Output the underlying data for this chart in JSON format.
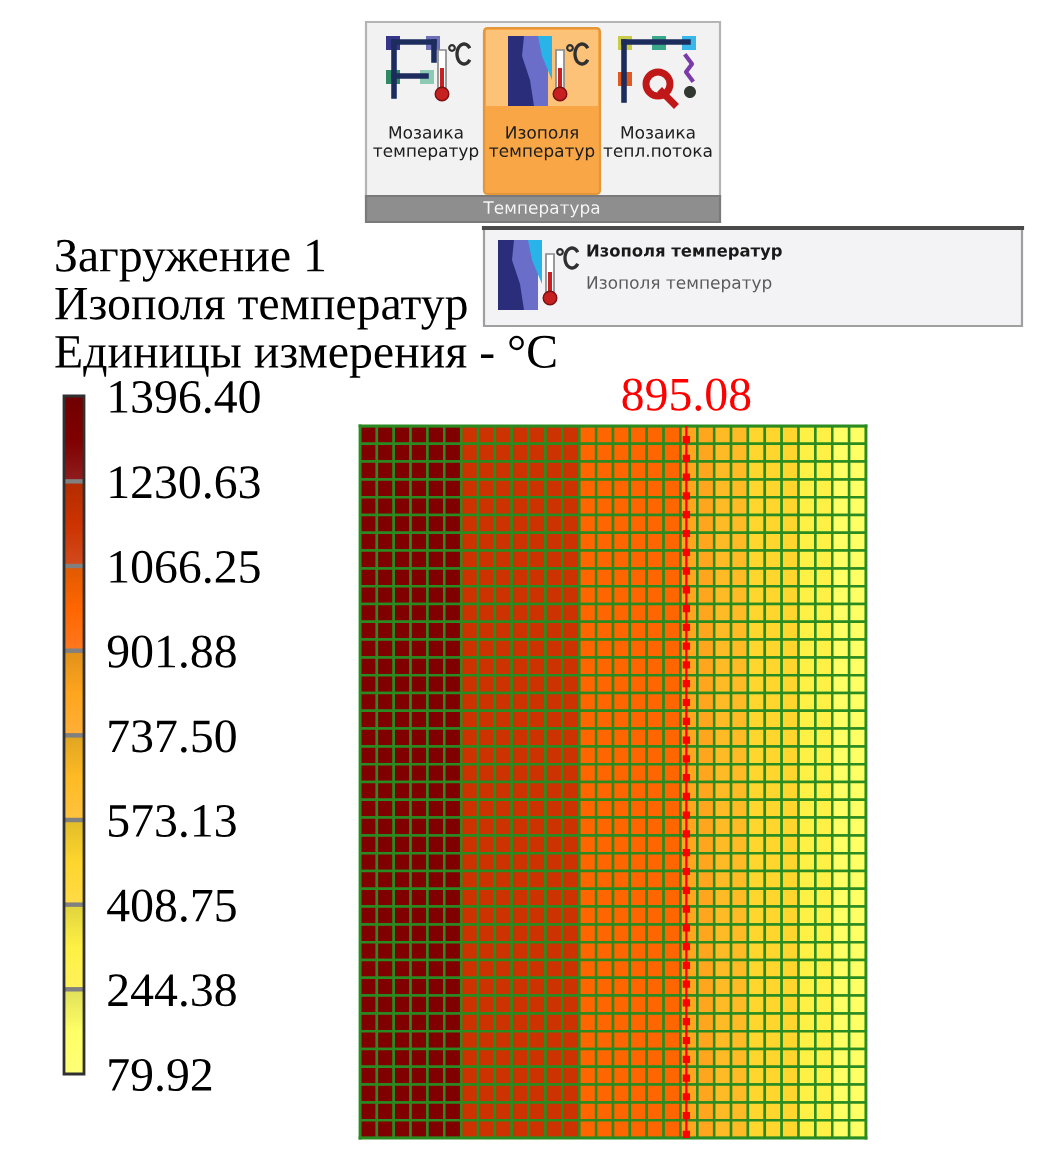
{
  "chart_data": {
    "type": "heatmap",
    "title": "Загружение 1",
    "subtitle": "Изополя температур",
    "clabel": "Единицы измерения - °C",
    "annotations": [
      "Мозаика\nтемператур",
      "Изополя\nтемператур",
      "Мозаика\nтепл.потока",
      "Температура",
      "Изополя температур",
      "Изополя температур",
      "895.08"
    ],
    "categories": [
      null,
      null,
      null,
      null,
      null,
      null,
      null,
      null,
      null,
      null,
      null,
      null,
      null,
      null,
      null,
      null,
      null,
      null,
      null,
      null,
      null,
      null,
      null,
      null,
      null,
      null,
      null,
      null,
      null,
      null
    ],
    "y_categories": [
      null,
      null,
      null,
      null,
      null,
      null,
      null,
      null,
      null,
      null,
      null,
      null,
      null,
      null,
      null,
      null,
      null,
      null,
      null,
      null,
      null,
      null,
      null,
      null,
      null,
      null,
      null,
      null,
      null,
      null,
      null,
      null,
      null,
      null,
      null,
      null,
      null,
      null,
      null,
      null
    ],
    "cells": [
      [
        1314,
        1314,
        1314,
        1314,
        1314,
        1314,
        1148,
        1148,
        1148,
        1148,
        1148,
        1148,
        1148,
        984,
        984,
        984,
        984,
        984,
        984,
        820,
        820,
        655,
        655,
        491,
        491,
        491,
        327,
        327,
        162,
        162
      ],
      [
        1314,
        1314,
        1314,
        1314,
        1314,
        1314,
        1148,
        1148,
        1148,
        1148,
        1148,
        1148,
        1148,
        984,
        984,
        984,
        984,
        984,
        984,
        820,
        820,
        655,
        655,
        491,
        491,
        491,
        327,
        327,
        162,
        162
      ],
      [
        1314,
        1314,
        1314,
        1314,
        1314,
        1314,
        1148,
        1148,
        1148,
        1148,
        1148,
        1148,
        1148,
        984,
        984,
        984,
        984,
        984,
        984,
        820,
        820,
        655,
        655,
        491,
        491,
        491,
        327,
        327,
        162,
        162
      ],
      [
        1314,
        1314,
        1314,
        1314,
        1314,
        1314,
        1148,
        1148,
        1148,
        1148,
        1148,
        1148,
        1148,
        984,
        984,
        984,
        984,
        984,
        984,
        820,
        820,
        655,
        655,
        491,
        491,
        491,
        327,
        327,
        162,
        162
      ],
      [
        1314,
        1314,
        1314,
        1314,
        1314,
        1314,
        1148,
        1148,
        1148,
        1148,
        1148,
        1148,
        1148,
        984,
        984,
        984,
        984,
        984,
        984,
        820,
        820,
        655,
        655,
        491,
        491,
        491,
        327,
        327,
        162,
        162
      ],
      [
        1314,
        1314,
        1314,
        1314,
        1314,
        1314,
        1148,
        1148,
        1148,
        1148,
        1148,
        1148,
        1148,
        984,
        984,
        984,
        984,
        984,
        984,
        820,
        820,
        655,
        655,
        491,
        491,
        491,
        327,
        327,
        162,
        162
      ],
      [
        1314,
        1314,
        1314,
        1314,
        1314,
        1314,
        1148,
        1148,
        1148,
        1148,
        1148,
        1148,
        1148,
        984,
        984,
        984,
        984,
        984,
        984,
        820,
        820,
        655,
        655,
        491,
        491,
        491,
        327,
        327,
        162,
        162
      ],
      [
        1314,
        1314,
        1314,
        1314,
        1314,
        1314,
        1148,
        1148,
        1148,
        1148,
        1148,
        1148,
        1148,
        984,
        984,
        984,
        984,
        984,
        984,
        820,
        820,
        655,
        655,
        491,
        491,
        491,
        327,
        327,
        162,
        162
      ],
      [
        1314,
        1314,
        1314,
        1314,
        1314,
        1314,
        1148,
        1148,
        1148,
        1148,
        1148,
        1148,
        1148,
        984,
        984,
        984,
        984,
        984,
        984,
        820,
        820,
        655,
        655,
        491,
        491,
        491,
        327,
        327,
        162,
        162
      ],
      [
        1314,
        1314,
        1314,
        1314,
        1314,
        1314,
        1148,
        1148,
        1148,
        1148,
        1148,
        1148,
        1148,
        984,
        984,
        984,
        984,
        984,
        984,
        820,
        820,
        655,
        655,
        491,
        491,
        491,
        327,
        327,
        162,
        162
      ],
      [
        1314,
        1314,
        1314,
        1314,
        1314,
        1314,
        1148,
        1148,
        1148,
        1148,
        1148,
        1148,
        1148,
        984,
        984,
        984,
        984,
        984,
        984,
        820,
        820,
        655,
        655,
        491,
        491,
        491,
        327,
        327,
        162,
        162
      ],
      [
        1314,
        1314,
        1314,
        1314,
        1314,
        1314,
        1148,
        1148,
        1148,
        1148,
        1148,
        1148,
        1148,
        984,
        984,
        984,
        984,
        984,
        984,
        820,
        820,
        655,
        655,
        491,
        491,
        491,
        327,
        327,
        162,
        162
      ],
      [
        1314,
        1314,
        1314,
        1314,
        1314,
        1314,
        1148,
        1148,
        1148,
        1148,
        1148,
        1148,
        1148,
        984,
        984,
        984,
        984,
        984,
        984,
        820,
        820,
        655,
        655,
        491,
        491,
        491,
        327,
        327,
        162,
        162
      ],
      [
        1314,
        1314,
        1314,
        1314,
        1314,
        1314,
        1148,
        1148,
        1148,
        1148,
        1148,
        1148,
        1148,
        984,
        984,
        984,
        984,
        984,
        984,
        820,
        820,
        655,
        655,
        491,
        491,
        491,
        327,
        327,
        162,
        162
      ],
      [
        1314,
        1314,
        1314,
        1314,
        1314,
        1314,
        1148,
        1148,
        1148,
        1148,
        1148,
        1148,
        1148,
        984,
        984,
        984,
        984,
        984,
        984,
        820,
        820,
        655,
        655,
        491,
        491,
        491,
        327,
        327,
        162,
        162
      ],
      [
        1314,
        1314,
        1314,
        1314,
        1314,
        1314,
        1148,
        1148,
        1148,
        1148,
        1148,
        1148,
        1148,
        984,
        984,
        984,
        984,
        984,
        984,
        820,
        820,
        655,
        655,
        491,
        491,
        491,
        327,
        327,
        162,
        162
      ],
      [
        1314,
        1314,
        1314,
        1314,
        1314,
        1314,
        1148,
        1148,
        1148,
        1148,
        1148,
        1148,
        1148,
        984,
        984,
        984,
        984,
        984,
        984,
        820,
        820,
        655,
        655,
        491,
        491,
        491,
        327,
        327,
        162,
        162
      ],
      [
        1314,
        1314,
        1314,
        1314,
        1314,
        1314,
        1148,
        1148,
        1148,
        1148,
        1148,
        1148,
        1148,
        984,
        984,
        984,
        984,
        984,
        984,
        820,
        820,
        655,
        655,
        491,
        491,
        491,
        327,
        327,
        162,
        162
      ],
      [
        1314,
        1314,
        1314,
        1314,
        1314,
        1314,
        1148,
        1148,
        1148,
        1148,
        1148,
        1148,
        1148,
        984,
        984,
        984,
        984,
        984,
        984,
        820,
        820,
        655,
        655,
        491,
        491,
        491,
        327,
        327,
        162,
        162
      ],
      [
        1314,
        1314,
        1314,
        1314,
        1314,
        1314,
        1148,
        1148,
        1148,
        1148,
        1148,
        1148,
        1148,
        984,
        984,
        984,
        984,
        984,
        984,
        820,
        820,
        655,
        655,
        491,
        491,
        491,
        327,
        327,
        162,
        162
      ],
      [
        1314,
        1314,
        1314,
        1314,
        1314,
        1314,
        1148,
        1148,
        1148,
        1148,
        1148,
        1148,
        1148,
        984,
        984,
        984,
        984,
        984,
        984,
        820,
        820,
        655,
        655,
        491,
        491,
        491,
        327,
        327,
        162,
        162
      ],
      [
        1314,
        1314,
        1314,
        1314,
        1314,
        1314,
        1148,
        1148,
        1148,
        1148,
        1148,
        1148,
        1148,
        984,
        984,
        984,
        984,
        984,
        984,
        820,
        820,
        655,
        655,
        491,
        491,
        491,
        327,
        327,
        162,
        162
      ],
      [
        1314,
        1314,
        1314,
        1314,
        1314,
        1314,
        1148,
        1148,
        1148,
        1148,
        1148,
        1148,
        1148,
        984,
        984,
        984,
        984,
        984,
        984,
        820,
        820,
        655,
        655,
        491,
        491,
        491,
        327,
        327,
        162,
        162
      ],
      [
        1314,
        1314,
        1314,
        1314,
        1314,
        1314,
        1148,
        1148,
        1148,
        1148,
        1148,
        1148,
        1148,
        984,
        984,
        984,
        984,
        984,
        984,
        820,
        820,
        655,
        655,
        491,
        491,
        491,
        327,
        327,
        162,
        162
      ],
      [
        1314,
        1314,
        1314,
        1314,
        1314,
        1314,
        1148,
        1148,
        1148,
        1148,
        1148,
        1148,
        1148,
        984,
        984,
        984,
        984,
        984,
        984,
        820,
        820,
        655,
        655,
        491,
        491,
        491,
        327,
        327,
        162,
        162
      ],
      [
        1314,
        1314,
        1314,
        1314,
        1314,
        1314,
        1148,
        1148,
        1148,
        1148,
        1148,
        1148,
        1148,
        984,
        984,
        984,
        984,
        984,
        984,
        820,
        820,
        655,
        655,
        491,
        491,
        491,
        327,
        327,
        162,
        162
      ],
      [
        1314,
        1314,
        1314,
        1314,
        1314,
        1314,
        1148,
        1148,
        1148,
        1148,
        1148,
        1148,
        1148,
        984,
        984,
        984,
        984,
        984,
        984,
        820,
        820,
        655,
        655,
        491,
        491,
        491,
        327,
        327,
        162,
        162
      ],
      [
        1314,
        1314,
        1314,
        1314,
        1314,
        1314,
        1148,
        1148,
        1148,
        1148,
        1148,
        1148,
        1148,
        984,
        984,
        984,
        984,
        984,
        984,
        820,
        820,
        655,
        655,
        491,
        491,
        491,
        327,
        327,
        162,
        162
      ],
      [
        1314,
        1314,
        1314,
        1314,
        1314,
        1314,
        1148,
        1148,
        1148,
        1148,
        1148,
        1148,
        1148,
        984,
        984,
        984,
        984,
        984,
        984,
        820,
        820,
        655,
        655,
        491,
        491,
        491,
        327,
        327,
        162,
        162
      ],
      [
        1314,
        1314,
        1314,
        1314,
        1314,
        1314,
        1148,
        1148,
        1148,
        1148,
        1148,
        1148,
        1148,
        984,
        984,
        984,
        984,
        984,
        984,
        820,
        820,
        655,
        655,
        491,
        491,
        491,
        327,
        327,
        162,
        162
      ],
      [
        1314,
        1314,
        1314,
        1314,
        1314,
        1314,
        1148,
        1148,
        1148,
        1148,
        1148,
        1148,
        1148,
        984,
        984,
        984,
        984,
        984,
        984,
        820,
        820,
        655,
        655,
        491,
        491,
        491,
        327,
        327,
        162,
        162
      ],
      [
        1314,
        1314,
        1314,
        1314,
        1314,
        1314,
        1148,
        1148,
        1148,
        1148,
        1148,
        1148,
        1148,
        984,
        984,
        984,
        984,
        984,
        984,
        820,
        820,
        655,
        655,
        491,
        491,
        491,
        327,
        327,
        162,
        162
      ],
      [
        1314,
        1314,
        1314,
        1314,
        1314,
        1314,
        1148,
        1148,
        1148,
        1148,
        1148,
        1148,
        1148,
        984,
        984,
        984,
        984,
        984,
        984,
        820,
        820,
        655,
        655,
        491,
        491,
        491,
        327,
        327,
        162,
        162
      ],
      [
        1314,
        1314,
        1314,
        1314,
        1314,
        1314,
        1148,
        1148,
        1148,
        1148,
        1148,
        1148,
        1148,
        984,
        984,
        984,
        984,
        984,
        984,
        820,
        820,
        655,
        655,
        491,
        491,
        491,
        327,
        327,
        162,
        162
      ],
      [
        1314,
        1314,
        1314,
        1314,
        1314,
        1314,
        1148,
        1148,
        1148,
        1148,
        1148,
        1148,
        1148,
        984,
        984,
        984,
        984,
        984,
        984,
        820,
        820,
        655,
        655,
        491,
        491,
        491,
        327,
        327,
        162,
        162
      ],
      [
        1314,
        1314,
        1314,
        1314,
        1314,
        1314,
        1148,
        1148,
        1148,
        1148,
        1148,
        1148,
        1148,
        984,
        984,
        984,
        984,
        984,
        984,
        820,
        820,
        655,
        655,
        491,
        491,
        491,
        327,
        327,
        162,
        162
      ],
      [
        1314,
        1314,
        1314,
        1314,
        1314,
        1314,
        1148,
        1148,
        1148,
        1148,
        1148,
        1148,
        1148,
        984,
        984,
        984,
        984,
        984,
        984,
        820,
        820,
        655,
        655,
        491,
        491,
        491,
        327,
        327,
        162,
        162
      ],
      [
        1314,
        1314,
        1314,
        1314,
        1314,
        1314,
        1148,
        1148,
        1148,
        1148,
        1148,
        1148,
        1148,
        984,
        984,
        984,
        984,
        984,
        984,
        820,
        820,
        655,
        655,
        491,
        491,
        491,
        327,
        327,
        162,
        162
      ],
      [
        1314,
        1314,
        1314,
        1314,
        1314,
        1314,
        1148,
        1148,
        1148,
        1148,
        1148,
        1148,
        1148,
        984,
        984,
        984,
        984,
        984,
        984,
        820,
        820,
        655,
        655,
        491,
        491,
        491,
        327,
        327,
        162,
        162
      ],
      [
        1314,
        1314,
        1314,
        1314,
        1314,
        1314,
        1148,
        1148,
        1148,
        1148,
        1148,
        1148,
        1148,
        984,
        984,
        984,
        984,
        984,
        984,
        820,
        820,
        655,
        655,
        491,
        491,
        491,
        327,
        327,
        162,
        162
      ]
    ],
    "colors": [
      "#ffff66",
      "#fff045",
      "#ffd62e",
      "#ffbb25",
      "#ffa51e",
      "#ff6600",
      "#cc3300",
      "#800000"
    ],
    "clim": [
      79.92,
      1396.4
    ],
    "cticks": [
      79.92,
      244.38,
      408.75,
      573.13,
      {
        "value": 737.5,
        "label": "737.50"
      },
      901.88,
      1066.25,
      1230.63,
      {
        "value": 1396.4,
        "label": "1396.40"
      }
    ],
    "tick_labels": false
  }
}
